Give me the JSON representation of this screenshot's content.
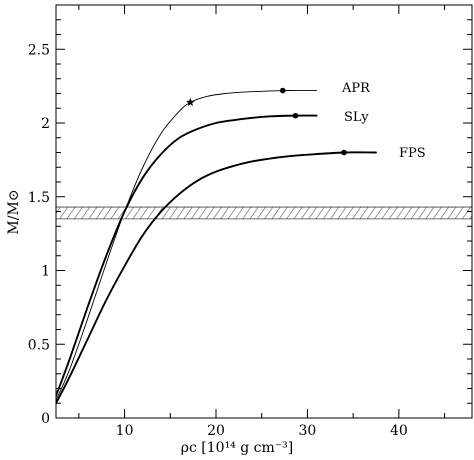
{
  "chart_data": {
    "type": "line",
    "xlabel": "ρc [10¹⁴ g cm⁻³]",
    "ylabel": "M/M⊙",
    "xlim": [
      2.5,
      48
    ],
    "ylim": [
      0,
      2.8
    ],
    "x_ticks": [
      10,
      20,
      30,
      40
    ],
    "y_ticks": [
      0,
      0.5,
      1,
      1.5,
      2,
      2.5
    ],
    "x_tick_labels": [
      "10",
      "20",
      "30",
      "40"
    ],
    "y_tick_labels": [
      "0",
      "0.5",
      "1",
      "1.5",
      "2",
      "2.5"
    ],
    "grid": false,
    "band": {
      "y_low": 1.35,
      "y_high": 1.43,
      "pattern": "hatched"
    },
    "series": [
      {
        "name": "APR",
        "line": "thin",
        "x": [
          2.5,
          4,
          6,
          8,
          10,
          12,
          14,
          16,
          17.2,
          19,
          21,
          23,
          25,
          27.3,
          29,
          31
        ],
        "y": [
          0.12,
          0.33,
          0.68,
          1.05,
          1.4,
          1.7,
          1.93,
          2.08,
          2.14,
          2.18,
          2.2,
          2.21,
          2.215,
          2.22,
          2.22,
          2.22
        ],
        "markers": [
          {
            "x": 17.2,
            "y": 2.14,
            "shape": "star"
          },
          {
            "x": 27.3,
            "y": 2.22,
            "shape": "dot"
          }
        ]
      },
      {
        "name": "SLy",
        "line": "thick",
        "x": [
          2.5,
          4,
          6,
          8,
          10,
          12,
          14,
          16,
          18,
          20,
          22,
          24,
          26,
          28.7,
          31
        ],
        "y": [
          0.15,
          0.4,
          0.76,
          1.1,
          1.4,
          1.63,
          1.79,
          1.9,
          1.96,
          2.0,
          2.02,
          2.035,
          2.045,
          2.05,
          2.05
        ],
        "markers": [
          {
            "x": 28.7,
            "y": 2.05,
            "shape": "dot"
          }
        ]
      },
      {
        "name": "FPS",
        "line": "thick",
        "x": [
          2.5,
          4,
          6,
          8,
          10,
          12,
          14,
          16,
          18,
          20,
          22,
          24,
          26,
          28,
          30,
          34,
          37.5
        ],
        "y": [
          0.1,
          0.28,
          0.54,
          0.8,
          1.03,
          1.24,
          1.4,
          1.52,
          1.61,
          1.67,
          1.71,
          1.74,
          1.76,
          1.775,
          1.785,
          1.8,
          1.8
        ],
        "markers": [
          {
            "x": 34,
            "y": 1.8,
            "shape": "dot"
          }
        ]
      }
    ]
  },
  "labels": {
    "apr": "APR",
    "sly": "SLy",
    "fps": "FPS"
  }
}
